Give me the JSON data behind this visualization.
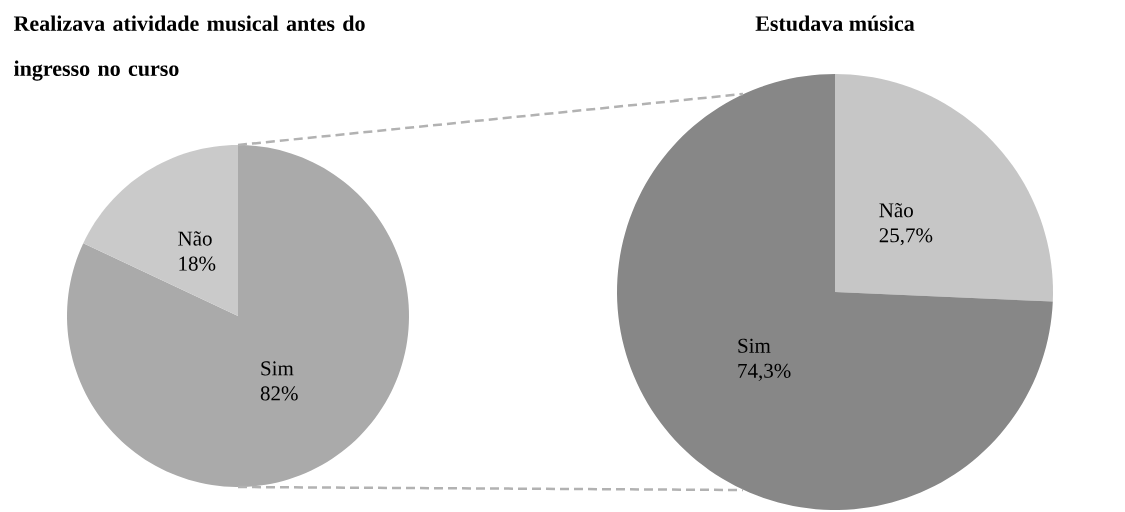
{
  "chart_data": [
    {
      "type": "pie",
      "title": "Realizava  atividade  musical antes do ingresso no curso",
      "categories": [
        "Sim",
        "Não"
      ],
      "values": [
        82,
        18
      ],
      "colors": [
        "#aaaaaa",
        "#cacaca"
      ],
      "value_labels": [
        "82%",
        "18%"
      ]
    },
    {
      "type": "pie",
      "title": "Estudava música",
      "categories": [
        "Não",
        "Sim"
      ],
      "values": [
        25.7,
        74.3
      ],
      "colors": [
        "#c6c6c6",
        "#878787"
      ],
      "value_labels": [
        "25,7%",
        "74,3%"
      ]
    }
  ]
}
